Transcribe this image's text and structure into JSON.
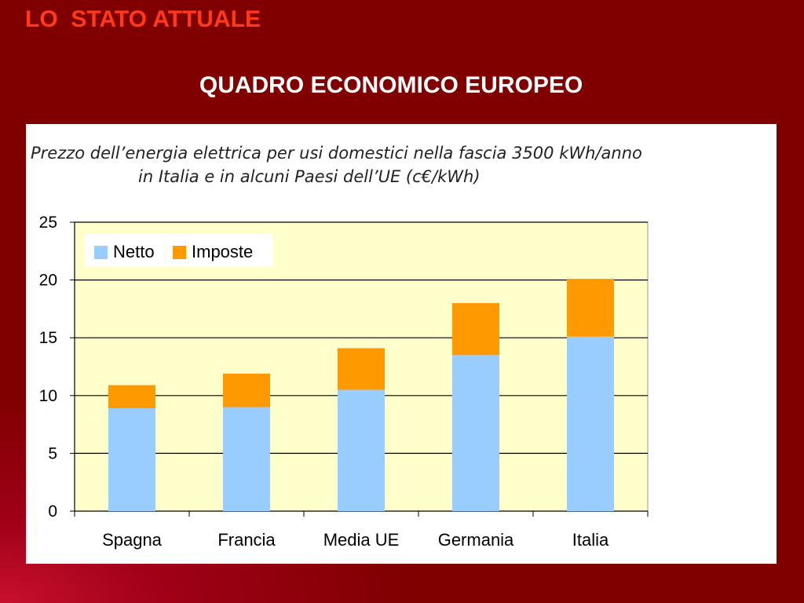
{
  "slide": {
    "label": "LO  STATO ATTUALE",
    "title": "QUADRO ECONOMICO EUROPEO"
  },
  "chart_data": {
    "type": "bar",
    "stacked": true,
    "title_line1": "Prezzo dell’energia elettrica per usi domestici nella fascia 3500 kWh/anno",
    "title_line2": "in Italia e in alcuni Paesi dell’UE (c€/kWh)",
    "categories": [
      "Spagna",
      "Francia",
      "Media UE",
      "Germania",
      "Italia"
    ],
    "series": [
      {
        "name": "Netto",
        "color": "#99ccff",
        "values": [
          8.9,
          9.0,
          10.5,
          13.5,
          15.1
        ]
      },
      {
        "name": "Imposte",
        "color": "#ff9900",
        "values": [
          2.0,
          2.9,
          3.6,
          4.5,
          5.0
        ]
      }
    ],
    "ylim": [
      0,
      25
    ],
    "yticks": [
      "0",
      "5",
      "10",
      "15",
      "20",
      "25"
    ],
    "grid": true,
    "legend_position": "top-left",
    "plot_background": "#ffffcc"
  }
}
